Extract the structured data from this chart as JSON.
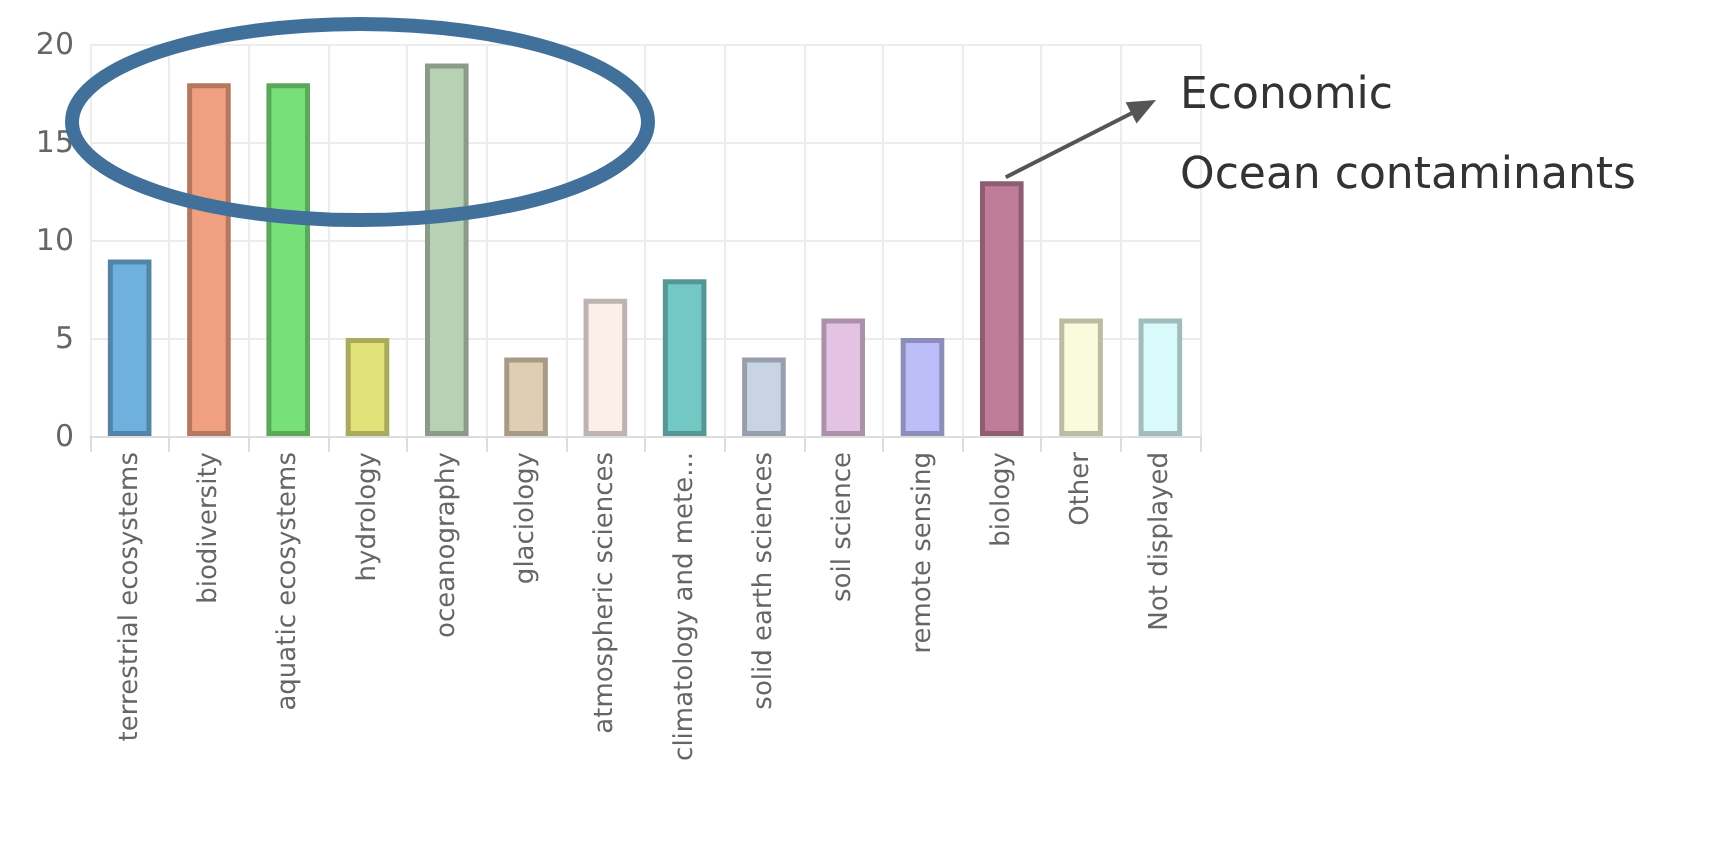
{
  "chart_data": {
    "type": "bar",
    "categories": [
      "terrestrial ecosystems",
      "biodiversity",
      "aquatic ecosystems",
      "hydrology",
      "oceanography",
      "glaciology",
      "atmospheric sciences",
      "climatology and mete...",
      "solid earth sciences",
      "soil science",
      "remote sensing",
      "biology",
      "Other",
      "Not displayed"
    ],
    "values": [
      9,
      18,
      18,
      5,
      19,
      4,
      7,
      8,
      4,
      6,
      5,
      13,
      6,
      6
    ],
    "colors": [
      "#6fb1de",
      "#f0a080",
      "#78e078",
      "#e2e27a",
      "#b8d0b4",
      "#dfcdb4",
      "#fcefea",
      "#72c8c4",
      "#c8d4e4",
      "#e4c2e4",
      "#bcbcf8",
      "#be7c98",
      "#fafadc",
      "#d8fafa"
    ],
    "ylim": [
      0,
      20
    ],
    "yticks": [
      0,
      5,
      10,
      15,
      20
    ],
    "grid": true,
    "annotations": [
      {
        "text": "Economic\nOcean contaminants",
        "x": "biology",
        "y": 13
      }
    ]
  }
}
